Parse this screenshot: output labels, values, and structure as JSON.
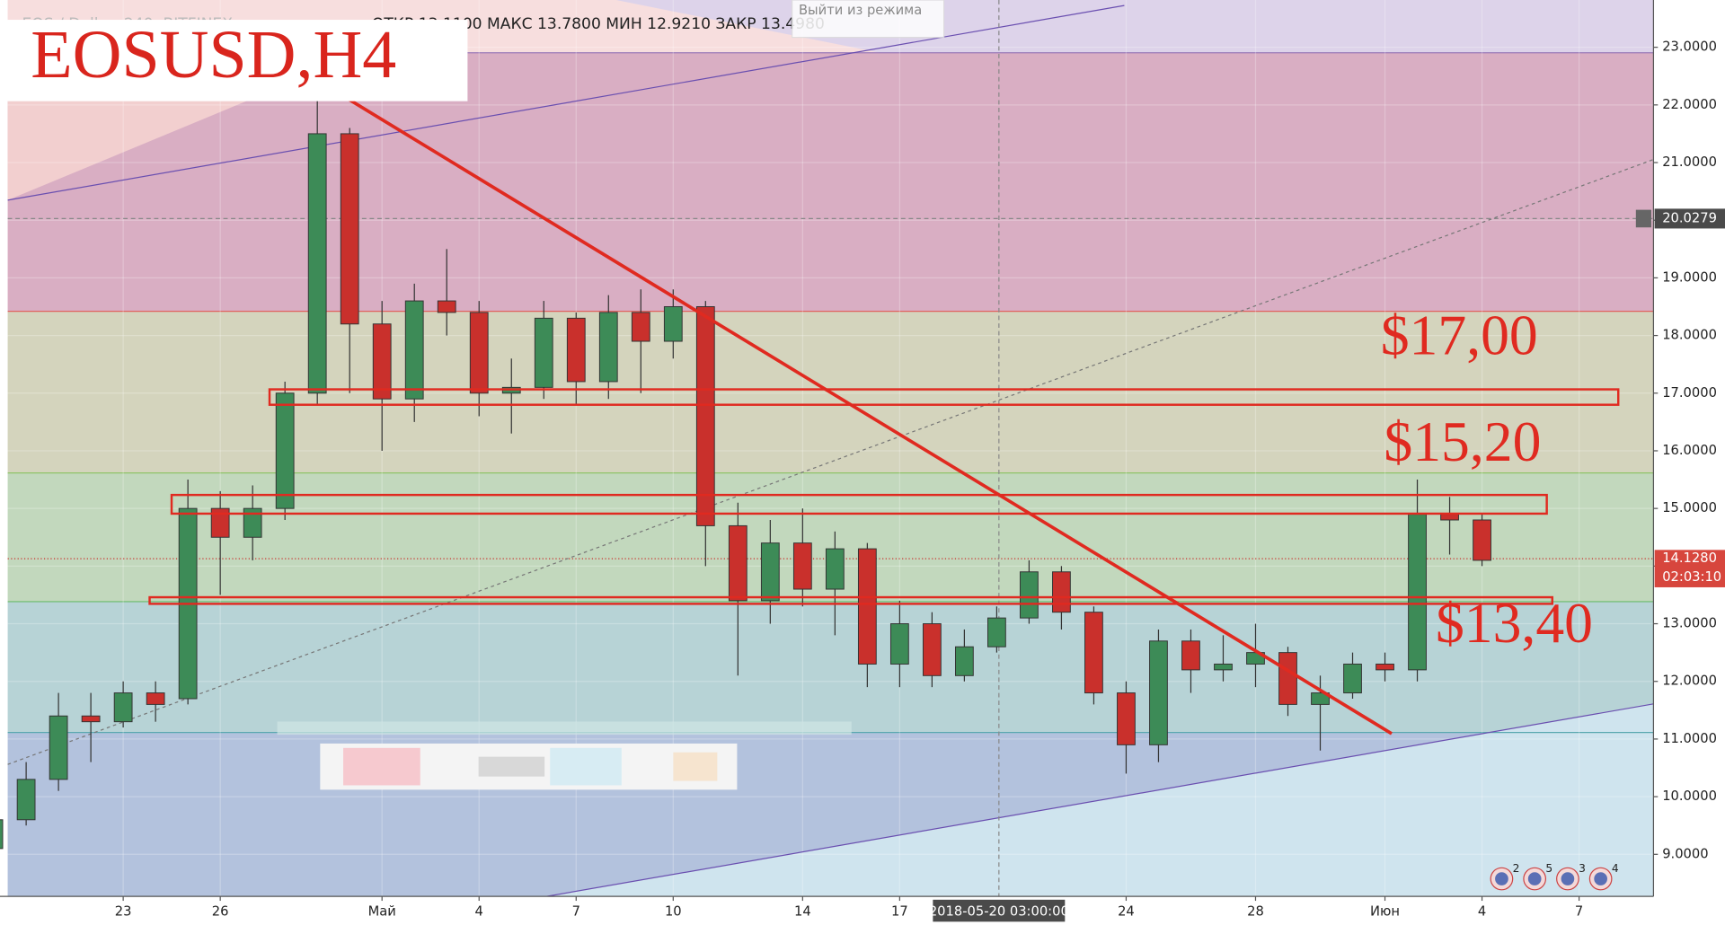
{
  "chart_data": {
    "type": "candlestick",
    "title": "EOSUSD,H4",
    "legend_text": "EOS / Dollar, 240, BITFINEX",
    "ohlc_text": "ОТКР 13.1100   МАКС 13.7800   МИН 12.9210   ЗАКР 13.4980",
    "tooltip": "Выйти из режима",
    "annotations": [
      "$17,00",
      "$15,20",
      "$13,40"
    ],
    "crosshair": {
      "value": 20.0279,
      "label": "20.0279",
      "date": "2018-05-20 03:00:00"
    },
    "last_price": {
      "value": 14.128,
      "label": "14.1280"
    },
    "countdown": "02:03:10",
    "events": [
      2,
      5,
      3,
      4
    ],
    "up_color": "#3d8b57",
    "down_color": "#c9302c",
    "x": [
      -4,
      -3,
      -2,
      -1,
      0,
      1,
      2,
      3,
      4,
      5,
      6,
      7,
      8,
      9,
      10,
      11,
      12,
      13,
      14,
      15,
      16,
      17,
      18,
      19,
      20,
      21,
      22,
      23,
      24,
      25,
      26,
      27,
      28,
      29,
      30,
      31,
      32,
      33,
      34,
      35,
      36,
      37,
      38,
      39,
      40,
      41,
      42
    ],
    "open": [
      9.1,
      9.6,
      10.3,
      11.4,
      11.3,
      11.8,
      11.7,
      15.0,
      14.5,
      15.0,
      17.0,
      21.5,
      18.2,
      16.9,
      18.6,
      18.4,
      17.0,
      17.1,
      18.3,
      17.2,
      18.4,
      17.9,
      18.5,
      14.7,
      13.4,
      14.4,
      13.6,
      14.3,
      12.3,
      13.0,
      12.1,
      12.6,
      13.1,
      13.9,
      13.2,
      11.8,
      10.9,
      12.7,
      12.2,
      12.3,
      12.5,
      11.6,
      11.8,
      12.3,
      12.2,
      14.9,
      14.8
    ],
    "high": [
      9.7,
      10.6,
      11.8,
      11.8,
      12.0,
      12.0,
      15.5,
      15.3,
      15.4,
      17.2,
      22.6,
      21.6,
      18.6,
      18.9,
      19.5,
      18.6,
      17.6,
      18.6,
      18.4,
      18.7,
      18.8,
      18.8,
      18.6,
      15.1,
      14.8,
      15.0,
      14.6,
      14.4,
      13.4,
      13.2,
      12.9,
      13.3,
      14.1,
      14.0,
      13.3,
      12.0,
      12.9,
      12.9,
      12.8,
      13.0,
      12.6,
      12.1,
      12.5,
      12.5,
      15.5,
      15.2,
      14.9
    ],
    "low": [
      9.0,
      9.5,
      10.1,
      10.6,
      11.2,
      11.3,
      11.6,
      13.5,
      14.1,
      14.8,
      16.8,
      17.0,
      16.0,
      16.5,
      18.0,
      16.6,
      16.3,
      16.9,
      16.8,
      16.9,
      17.0,
      17.6,
      14.0,
      12.1,
      13.0,
      13.3,
      12.8,
      11.9,
      11.9,
      11.9,
      12.0,
      12.5,
      13.0,
      12.9,
      11.6,
      10.4,
      10.6,
      11.8,
      12.0,
      11.9,
      11.4,
      10.8,
      11.7,
      12.0,
      12.0,
      14.2,
      14.0
    ],
    "close": [
      9.6,
      10.3,
      11.4,
      11.3,
      11.8,
      11.6,
      15.0,
      14.5,
      15.0,
      17.0,
      21.5,
      18.2,
      16.9,
      18.6,
      18.4,
      17.0,
      17.1,
      18.3,
      17.2,
      18.4,
      17.9,
      18.5,
      14.7,
      13.4,
      14.4,
      13.6,
      14.3,
      12.3,
      13.0,
      12.1,
      12.6,
      13.1,
      13.9,
      13.2,
      11.8,
      10.9,
      12.7,
      12.2,
      12.3,
      12.5,
      11.6,
      11.8,
      12.3,
      12.2,
      14.9,
      14.8,
      14.1
    ],
    "xlim": [
      -3.57,
      47.3
    ],
    "xticks": [
      {
        "value": 0,
        "label": "23"
      },
      {
        "value": 3,
        "label": "26"
      },
      {
        "value": 8,
        "label": "Май"
      },
      {
        "value": 11,
        "label": "4"
      },
      {
        "value": 14,
        "label": "7"
      },
      {
        "value": 17,
        "label": "10"
      },
      {
        "value": 21,
        "label": "14"
      },
      {
        "value": 24,
        "label": "17"
      },
      {
        "value": 31,
        "label": "24"
      },
      {
        "value": 35,
        "label": "28"
      },
      {
        "value": 39,
        "label": "Июн"
      },
      {
        "value": 42,
        "label": "4"
      },
      {
        "value": 45,
        "label": "7"
      }
    ],
    "ylim": [
      8.27,
      23.82
    ],
    "yticks": [
      {
        "value": 9,
        "label": "9.0000"
      },
      {
        "value": 10,
        "label": "10.0000"
      },
      {
        "value": 11,
        "label": "11.0000"
      },
      {
        "value": 12,
        "label": "12.0000"
      },
      {
        "value": 13,
        "label": "13.0000"
      },
      {
        "value": 14,
        "label": "14.0000"
      },
      {
        "value": 15,
        "label": "15.0000"
      },
      {
        "value": 16,
        "label": "16.0000"
      },
      {
        "value": 17,
        "label": "17.0000"
      },
      {
        "value": 18,
        "label": "18.0000"
      },
      {
        "value": 19,
        "label": "19.0000"
      },
      {
        "value": 20,
        "label": "20.0000"
      },
      {
        "value": 21,
        "label": "21.0000"
      },
      {
        "value": 22,
        "label": "22.0000"
      },
      {
        "value": 23,
        "label": "23.0000"
      }
    ],
    "grid": true
  }
}
